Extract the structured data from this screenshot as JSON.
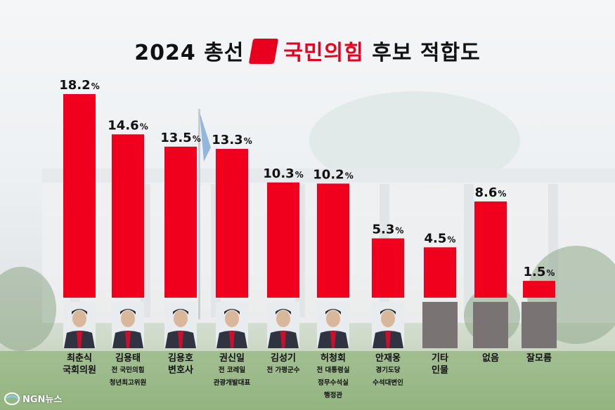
{
  "title": {
    "prefix": "2024 총선",
    "party": "국민의힘",
    "suffix": "후보 적합도"
  },
  "brand": {
    "name": "NGN뉴스"
  },
  "colors": {
    "bar": "#f0001c",
    "photo_placeholder": "#7a7373",
    "party_red": "#e8001e"
  },
  "chart_data": {
    "type": "bar",
    "title": "2024 총선 국민의힘 후보 적합도",
    "value_suffix": "%",
    "categories": [
      "최춘식",
      "김용태",
      "김용호",
      "권신일",
      "김성기",
      "허청회",
      "안재웅",
      "기타 인물",
      "없음",
      "잘모름"
    ],
    "values": [
      18.2,
      14.6,
      13.5,
      13.3,
      10.3,
      10.2,
      5.3,
      4.5,
      8.6,
      1.5
    ],
    "labels": [
      {
        "name": "최춘식",
        "sub": [
          "국회의원"
        ]
      },
      {
        "name": "김용태",
        "sub": [
          "전 국민의힘",
          "청년최고위원"
        ]
      },
      {
        "name": "김용호",
        "sub": [
          "변호사"
        ]
      },
      {
        "name": "권신일",
        "sub": [
          "전 코레일",
          "관광개발대표"
        ]
      },
      {
        "name": "김성기",
        "sub": [
          "전 가평군수"
        ]
      },
      {
        "name": "허청회",
        "sub": [
          "전 대통령실",
          "정무수석실",
          "행정관"
        ]
      },
      {
        "name": "안재웅",
        "sub": [
          "경기도당",
          "수석대변인"
        ]
      },
      {
        "name": "기타",
        "sub": [
          "인물"
        ]
      },
      {
        "name": "없음",
        "sub": []
      },
      {
        "name": "잘모름",
        "sub": []
      }
    ],
    "has_photo": [
      true,
      true,
      true,
      true,
      true,
      true,
      true,
      false,
      false,
      false
    ],
    "ylim": [
      0,
      20
    ]
  }
}
